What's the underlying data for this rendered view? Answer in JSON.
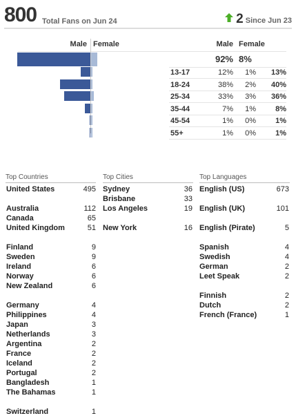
{
  "header": {
    "total_fans": "800",
    "total_label": "Total Fans on Jun 24",
    "change": "2",
    "change_label": "Since Jun 23",
    "arrow_color": "#4caf28"
  },
  "gender_age": {
    "headers": {
      "male_left": "Male",
      "female_left": "Female",
      "male_right": "Male",
      "female_right": "Female"
    },
    "overall": {
      "male_pct": "92%",
      "female_pct": "8%",
      "male_value": 92,
      "female_value": 8
    },
    "rows": [
      {
        "age": "13-17",
        "male": "12%",
        "female": "1%",
        "total": "13%",
        "male_value": 12,
        "female_value": 1
      },
      {
        "age": "18-24",
        "male": "38%",
        "female": "2%",
        "total": "40%",
        "male_value": 38,
        "female_value": 2
      },
      {
        "age": "25-34",
        "male": "33%",
        "female": "3%",
        "total": "36%",
        "male_value": 33,
        "female_value": 3
      },
      {
        "age": "35-44",
        "male": "7%",
        "female": "1%",
        "total": "8%",
        "male_value": 7,
        "female_value": 1
      },
      {
        "age": "45-54",
        "male": "1%",
        "female": "0%",
        "total": "1%",
        "male_value": 1,
        "female_value": 0
      },
      {
        "age": "55+",
        "male": "1%",
        "female": "0%",
        "total": "1%",
        "male_value": 1,
        "female_value": 0
      }
    ],
    "colors": {
      "male": "#3b5998",
      "female": "#a8bad7"
    }
  },
  "countries": {
    "title": "Top Countries",
    "items": [
      {
        "name": "United States",
        "value": "495"
      },
      {
        "name": "Australia",
        "value": "112"
      },
      {
        "name": "Canada",
        "value": "65"
      },
      {
        "name": "United Kingdom",
        "value": "51"
      },
      {
        "name": "Finland",
        "value": "9"
      },
      {
        "name": "Sweden",
        "value": "9"
      },
      {
        "name": "Ireland",
        "value": "6"
      },
      {
        "name": "Norway",
        "value": "6"
      },
      {
        "name": "New Zealand",
        "value": "6"
      },
      {
        "name": "Germany",
        "value": "4"
      },
      {
        "name": "Philippines",
        "value": "4"
      },
      {
        "name": "Japan",
        "value": "3"
      },
      {
        "name": "Netherlands",
        "value": "3"
      },
      {
        "name": "Argentina",
        "value": "2"
      },
      {
        "name": "France",
        "value": "2"
      },
      {
        "name": "Iceland",
        "value": "2"
      },
      {
        "name": "Portugal",
        "value": "2"
      },
      {
        "name": "Bangladesh",
        "value": "1"
      },
      {
        "name": "The Bahamas",
        "value": "1"
      },
      {
        "name": "Switzerland",
        "value": "1"
      }
    ]
  },
  "cities": {
    "title": "Top Cities",
    "items": [
      {
        "name": "Sydney",
        "value": "36"
      },
      {
        "name": "Brisbane",
        "value": "33"
      },
      {
        "name": "Los Angeles",
        "value": "19"
      },
      {
        "name": "New York",
        "value": "16"
      }
    ]
  },
  "languages": {
    "title": "Top Languages",
    "items": [
      {
        "name": "English (US)",
        "value": "673"
      },
      {
        "name": "English (UK)",
        "value": "101"
      },
      {
        "name": "English (Pirate)",
        "value": "5"
      },
      {
        "name": "Spanish",
        "value": "4"
      },
      {
        "name": "Swedish",
        "value": "4"
      },
      {
        "name": "German",
        "value": "2"
      },
      {
        "name": "Leet Speak",
        "value": "2"
      },
      {
        "name": "Finnish",
        "value": "2"
      },
      {
        "name": "Dutch",
        "value": "2"
      },
      {
        "name": "French (France)",
        "value": "1"
      }
    ]
  }
}
